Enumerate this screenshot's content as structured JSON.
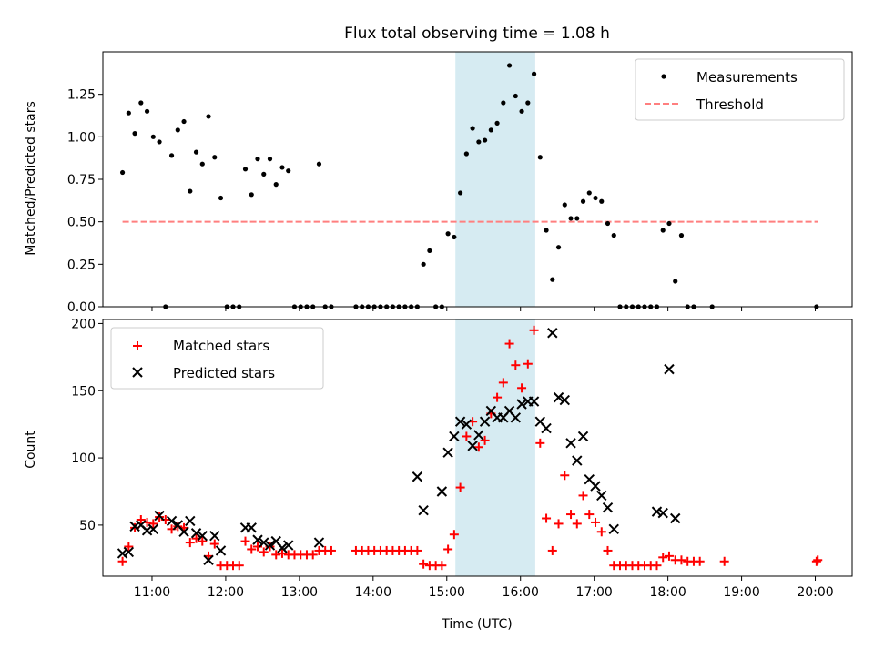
{
  "title": "Flux total observing time = 1.08 h",
  "colors": {
    "measurement": "#000000",
    "threshold": "#ff7f7f",
    "matched": "#ff0000",
    "predicted": "#000000",
    "highlight": "#add8e6"
  },
  "chart_data": [
    {
      "type": "scatter",
      "ylabel": "Matched/Predicted stars",
      "xlim": [
        "10:20",
        "20:30"
      ],
      "ylim": [
        0,
        1.5
      ],
      "yticks": [
        "0.00",
        "0.25",
        "0.50",
        "0.75",
        "1.00",
        "1.25"
      ],
      "highlight_span": [
        "15:07",
        "16:12"
      ],
      "legend_position": "upper right",
      "legend": [
        "Measurements",
        "Threshold"
      ],
      "threshold": {
        "name": "Threshold",
        "value": 0.5,
        "x_start": "10:36",
        "x_end": "20:02"
      },
      "series": [
        {
          "name": "Measurements",
          "points": [
            [
              "10:36",
              0.79
            ],
            [
              "10:41",
              1.14
            ],
            [
              "10:46",
              1.02
            ],
            [
              "10:51",
              1.2
            ],
            [
              "10:56",
              1.15
            ],
            [
              "11:01",
              1.0
            ],
            [
              "11:06",
              0.97
            ],
            [
              "11:11",
              0.0
            ],
            [
              "11:16",
              0.89
            ],
            [
              "11:21",
              1.04
            ],
            [
              "11:26",
              1.09
            ],
            [
              "11:31",
              0.68
            ],
            [
              "11:36",
              0.91
            ],
            [
              "11:41",
              0.84
            ],
            [
              "11:46",
              1.12
            ],
            [
              "11:51",
              0.88
            ],
            [
              "11:56",
              0.64
            ],
            [
              "12:01",
              0.0
            ],
            [
              "12:06",
              0.0
            ],
            [
              "12:11",
              0.0
            ],
            [
              "12:16",
              0.81
            ],
            [
              "12:21",
              0.66
            ],
            [
              "12:26",
              0.87
            ],
            [
              "12:31",
              0.78
            ],
            [
              "12:36",
              0.87
            ],
            [
              "12:41",
              0.72
            ],
            [
              "12:46",
              0.82
            ],
            [
              "12:51",
              0.8
            ],
            [
              "12:56",
              0.0
            ],
            [
              "13:01",
              0.0
            ],
            [
              "13:06",
              0.0
            ],
            [
              "13:11",
              0.0
            ],
            [
              "13:16",
              0.84
            ],
            [
              "13:21",
              0.0
            ],
            [
              "13:26",
              0.0
            ],
            [
              "13:46",
              0.0
            ],
            [
              "13:51",
              0.0
            ],
            [
              "13:56",
              0.0
            ],
            [
              "14:01",
              0.0
            ],
            [
              "14:06",
              0.0
            ],
            [
              "14:11",
              0.0
            ],
            [
              "14:16",
              0.0
            ],
            [
              "14:21",
              0.0
            ],
            [
              "14:26",
              0.0
            ],
            [
              "14:31",
              0.0
            ],
            [
              "14:36",
              0.0
            ],
            [
              "14:41",
              0.25
            ],
            [
              "14:46",
              0.33
            ],
            [
              "14:51",
              0.0
            ],
            [
              "14:56",
              0.0
            ],
            [
              "15:01",
              0.43
            ],
            [
              "15:06",
              0.41
            ],
            [
              "15:11",
              0.67
            ],
            [
              "15:16",
              0.9
            ],
            [
              "15:21",
              1.05
            ],
            [
              "15:26",
              0.97
            ],
            [
              "15:31",
              0.98
            ],
            [
              "15:36",
              1.04
            ],
            [
              "15:41",
              1.08
            ],
            [
              "15:46",
              1.2
            ],
            [
              "15:51",
              1.42
            ],
            [
              "15:56",
              1.24
            ],
            [
              "16:01",
              1.15
            ],
            [
              "16:06",
              1.2
            ],
            [
              "16:11",
              1.37
            ],
            [
              "16:16",
              0.88
            ],
            [
              "16:21",
              0.45
            ],
            [
              "16:26",
              0.16
            ],
            [
              "16:31",
              0.35
            ],
            [
              "16:36",
              0.6
            ],
            [
              "16:41",
              0.52
            ],
            [
              "16:46",
              0.52
            ],
            [
              "16:51",
              0.62
            ],
            [
              "16:56",
              0.67
            ],
            [
              "17:01",
              0.64
            ],
            [
              "17:06",
              0.62
            ],
            [
              "17:11",
              0.49
            ],
            [
              "17:16",
              0.42
            ],
            [
              "17:21",
              0.0
            ],
            [
              "17:26",
              0.0
            ],
            [
              "17:31",
              0.0
            ],
            [
              "17:36",
              0.0
            ],
            [
              "17:41",
              0.0
            ],
            [
              "17:46",
              0.0
            ],
            [
              "17:51",
              0.0
            ],
            [
              "17:56",
              0.45
            ],
            [
              "18:01",
              0.49
            ],
            [
              "18:06",
              0.15
            ],
            [
              "18:11",
              0.42
            ],
            [
              "18:16",
              0.0
            ],
            [
              "18:21",
              0.0
            ],
            [
              "18:36",
              0.0
            ],
            [
              "20:01",
              0.0
            ]
          ]
        }
      ]
    },
    {
      "type": "scatter",
      "xlabel": "Time (UTC)",
      "ylabel": "Count",
      "xlim": [
        "10:20",
        "20:30"
      ],
      "ylim": [
        12,
        203
      ],
      "yticks": [
        "50",
        "100",
        "150",
        "200"
      ],
      "xticks": [
        "11:00",
        "12:00",
        "13:00",
        "14:00",
        "15:00",
        "16:00",
        "17:00",
        "18:00",
        "19:00",
        "20:00"
      ],
      "highlight_span": [
        "15:07",
        "16:12"
      ],
      "legend_position": "upper left",
      "legend": [
        "Matched stars",
        "Predicted stars"
      ],
      "series": [
        {
          "name": "Matched stars",
          "marker": "+",
          "points": [
            [
              "10:36",
              23
            ],
            [
              "10:41",
              34
            ],
            [
              "10:46",
              48
            ],
            [
              "10:51",
              54
            ],
            [
              "10:56",
              52
            ],
            [
              "11:01",
              51
            ],
            [
              "11:06",
              56
            ],
            [
              "11:11",
              54
            ],
            [
              "11:16",
              47
            ],
            [
              "11:21",
              49
            ],
            [
              "11:26",
              48
            ],
            [
              "11:31",
              37
            ],
            [
              "11:36",
              40
            ],
            [
              "11:41",
              38
            ],
            [
              "11:46",
              27
            ],
            [
              "11:51",
              36
            ],
            [
              "11:56",
              20
            ],
            [
              "12:01",
              20
            ],
            [
              "12:06",
              20
            ],
            [
              "12:11",
              20
            ],
            [
              "12:16",
              38
            ],
            [
              "12:21",
              32
            ],
            [
              "12:26",
              34
            ],
            [
              "12:31",
              30
            ],
            [
              "12:36",
              34
            ],
            [
              "12:41",
              28
            ],
            [
              "12:46",
              29
            ],
            [
              "12:51",
              28
            ],
            [
              "12:56",
              28
            ],
            [
              "13:01",
              28
            ],
            [
              "13:06",
              28
            ],
            [
              "13:11",
              28
            ],
            [
              "13:16",
              31
            ],
            [
              "13:21",
              31
            ],
            [
              "13:26",
              31
            ],
            [
              "13:46",
              31
            ],
            [
              "13:51",
              31
            ],
            [
              "13:56",
              31
            ],
            [
              "14:01",
              31
            ],
            [
              "14:06",
              31
            ],
            [
              "14:11",
              31
            ],
            [
              "14:16",
              31
            ],
            [
              "14:21",
              31
            ],
            [
              "14:26",
              31
            ],
            [
              "14:31",
              31
            ],
            [
              "14:36",
              31
            ],
            [
              "14:41",
              21
            ],
            [
              "14:46",
              20
            ],
            [
              "14:51",
              20
            ],
            [
              "14:56",
              20
            ],
            [
              "15:01",
              32
            ],
            [
              "15:06",
              43
            ],
            [
              "15:11",
              78
            ],
            [
              "15:16",
              116
            ],
            [
              "15:21",
              127
            ],
            [
              "15:26",
              108
            ],
            [
              "15:31",
              113
            ],
            [
              "15:36",
              133
            ],
            [
              "15:41",
              145
            ],
            [
              "15:46",
              156
            ],
            [
              "15:51",
              185
            ],
            [
              "15:56",
              169
            ],
            [
              "16:01",
              152
            ],
            [
              "16:06",
              170
            ],
            [
              "16:11",
              195
            ],
            [
              "16:16",
              111
            ],
            [
              "16:21",
              55
            ],
            [
              "16:26",
              31
            ],
            [
              "16:31",
              51
            ],
            [
              "16:36",
              87
            ],
            [
              "16:41",
              58
            ],
            [
              "16:46",
              51
            ],
            [
              "16:51",
              72
            ],
            [
              "16:56",
              58
            ],
            [
              "17:01",
              52
            ],
            [
              "17:06",
              45
            ],
            [
              "17:11",
              31
            ],
            [
              "17:16",
              20
            ],
            [
              "17:21",
              20
            ],
            [
              "17:26",
              20
            ],
            [
              "17:31",
              20
            ],
            [
              "17:36",
              20
            ],
            [
              "17:41",
              20
            ],
            [
              "17:46",
              20
            ],
            [
              "17:51",
              20
            ],
            [
              "17:56",
              26
            ],
            [
              "18:01",
              27
            ],
            [
              "18:06",
              24
            ],
            [
              "18:11",
              24
            ],
            [
              "18:16",
              23
            ],
            [
              "18:21",
              23
            ],
            [
              "18:26",
              23
            ],
            [
              "18:46",
              23
            ],
            [
              "20:01",
              23
            ],
            [
              "20:02",
              24
            ]
          ]
        },
        {
          "name": "Predicted stars",
          "marker": "x",
          "points": [
            [
              "10:36",
              29
            ],
            [
              "10:41",
              30
            ],
            [
              "10:46",
              49
            ],
            [
              "10:51",
              50
            ],
            [
              "10:56",
              46
            ],
            [
              "11:01",
              47
            ],
            [
              "11:06",
              57
            ],
            [
              "11:16",
              53
            ],
            [
              "11:21",
              50
            ],
            [
              "11:26",
              45
            ],
            [
              "11:31",
              53
            ],
            [
              "11:36",
              44
            ],
            [
              "11:41",
              42
            ],
            [
              "11:46",
              24
            ],
            [
              "11:51",
              42
            ],
            [
              "11:56",
              31
            ],
            [
              "12:16",
              48
            ],
            [
              "12:21",
              48
            ],
            [
              "12:26",
              39
            ],
            [
              "12:31",
              37
            ],
            [
              "12:36",
              35
            ],
            [
              "12:41",
              38
            ],
            [
              "12:46",
              33
            ],
            [
              "12:51",
              35
            ],
            [
              "13:16",
              37
            ],
            [
              "14:36",
              86
            ],
            [
              "14:41",
              61
            ],
            [
              "14:56",
              75
            ],
            [
              "15:01",
              104
            ],
            [
              "15:06",
              116
            ],
            [
              "15:11",
              127
            ],
            [
              "15:16",
              125
            ],
            [
              "15:21",
              109
            ],
            [
              "15:26",
              117
            ],
            [
              "15:31",
              127
            ],
            [
              "15:36",
              135
            ],
            [
              "15:41",
              130
            ],
            [
              "15:46",
              130
            ],
            [
              "15:51",
              135
            ],
            [
              "15:56",
              130
            ],
            [
              "16:01",
              140
            ],
            [
              "16:06",
              142
            ],
            [
              "16:11",
              142
            ],
            [
              "16:16",
              127
            ],
            [
              "16:21",
              122
            ],
            [
              "16:26",
              193
            ],
            [
              "16:31",
              145
            ],
            [
              "16:36",
              143
            ],
            [
              "16:41",
              111
            ],
            [
              "16:46",
              98
            ],
            [
              "16:51",
              116
            ],
            [
              "16:56",
              84
            ],
            [
              "17:01",
              79
            ],
            [
              "17:06",
              72
            ],
            [
              "17:11",
              63
            ],
            [
              "17:16",
              47
            ],
            [
              "17:51",
              60
            ],
            [
              "17:56",
              59
            ],
            [
              "18:01",
              166
            ],
            [
              "18:06",
              55
            ]
          ]
        }
      ]
    }
  ]
}
